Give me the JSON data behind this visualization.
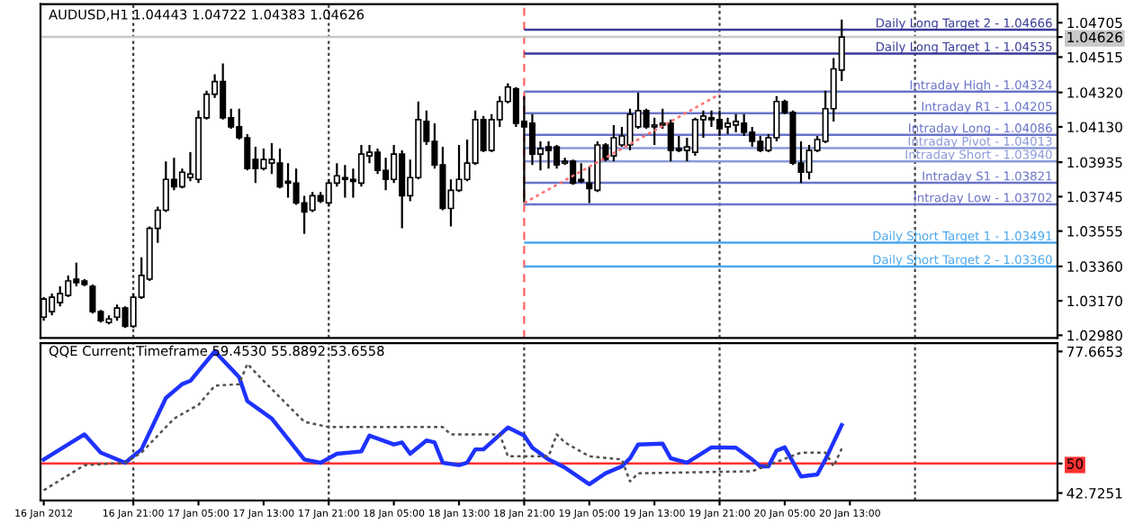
{
  "chart_data": [
    {
      "type": "candlestick",
      "title": "AUDUSD,H1 1.04443 1.04722 1.04383 1.04626",
      "x": [
        "2012-01-16T10:00",
        "2012-01-16T11:00",
        "2012-01-16T12:00",
        "2012-01-16T13:00",
        "2012-01-16T14:00",
        "2012-01-16T15:00",
        "2012-01-16T16:00",
        "2012-01-16T17:00",
        "2012-01-16T18:00",
        "2012-01-16T19:00",
        "2012-01-16T20:00",
        "2012-01-16T21:00",
        "2012-01-16T22:00",
        "2012-01-16T23:00",
        "2012-01-17T00:00",
        "2012-01-17T01:00",
        "2012-01-17T02:00",
        "2012-01-17T03:00",
        "2012-01-17T04:00",
        "2012-01-17T05:00",
        "2012-01-17T06:00",
        "2012-01-17T07:00",
        "2012-01-17T08:00",
        "2012-01-17T09:00",
        "2012-01-17T10:00",
        "2012-01-17T11:00",
        "2012-01-17T12:00",
        "2012-01-17T13:00",
        "2012-01-17T14:00",
        "2012-01-17T15:00",
        "2012-01-17T16:00",
        "2012-01-17T17:00",
        "2012-01-17T18:00",
        "2012-01-17T19:00",
        "2012-01-17T20:00",
        "2012-01-17T21:00",
        "2012-01-17T22:00",
        "2012-01-17T23:00",
        "2012-01-18T00:00",
        "2012-01-18T01:00",
        "2012-01-18T02:00",
        "2012-01-18T03:00",
        "2012-01-18T04:00",
        "2012-01-18T05:00",
        "2012-01-18T06:00",
        "2012-01-18T07:00",
        "2012-01-18T08:00",
        "2012-01-18T09:00",
        "2012-01-18T10:00",
        "2012-01-18T11:00",
        "2012-01-18T12:00",
        "2012-01-18T13:00",
        "2012-01-18T14:00",
        "2012-01-18T15:00",
        "2012-01-18T16:00",
        "2012-01-18T17:00",
        "2012-01-18T18:00",
        "2012-01-18T19:00",
        "2012-01-18T20:00",
        "2012-01-18T21:00",
        "2012-01-18T22:00",
        "2012-01-18T23:00",
        "2012-01-19T00:00",
        "2012-01-19T01:00",
        "2012-01-19T02:00",
        "2012-01-19T03:00",
        "2012-01-19T04:00",
        "2012-01-19T05:00",
        "2012-01-19T06:00",
        "2012-01-19T07:00",
        "2012-01-19T08:00",
        "2012-01-19T09:00",
        "2012-01-19T10:00",
        "2012-01-19T11:00",
        "2012-01-19T12:00",
        "2012-01-19T13:00",
        "2012-01-19T14:00",
        "2012-01-19T15:00",
        "2012-01-19T16:00",
        "2012-01-19T17:00",
        "2012-01-19T18:00",
        "2012-01-19T19:00",
        "2012-01-19T20:00",
        "2012-01-19T21:00",
        "2012-01-19T22:00",
        "2012-01-19T23:00",
        "2012-01-20T00:00",
        "2012-01-20T01:00",
        "2012-01-20T02:00",
        "2012-01-20T03:00",
        "2012-01-20T04:00",
        "2012-01-20T05:00",
        "2012-01-20T06:00",
        "2012-01-20T07:00",
        "2012-01-20T08:00",
        "2012-01-20T09:00",
        "2012-01-20T10:00",
        "2012-01-20T11:00",
        "2012-01-20T12:00"
      ],
      "ohlc": [
        [
          1.0308,
          1.0319,
          1.0306,
          1.0318
        ],
        [
          1.0311,
          1.0321,
          1.0309,
          1.0319
        ],
        [
          1.0316,
          1.0325,
          1.0314,
          1.0321
        ],
        [
          1.032,
          1.0331,
          1.0319,
          1.0328
        ],
        [
          1.0329,
          1.0338,
          1.0325,
          1.0327
        ],
        [
          1.0328,
          1.0329,
          1.0325,
          1.0326
        ],
        [
          1.0325,
          1.0326,
          1.031,
          1.0311
        ],
        [
          1.0311,
          1.0312,
          1.0305,
          1.0306
        ],
        [
          1.0305,
          1.0309,
          1.0304,
          1.0307
        ],
        [
          1.0308,
          1.0315,
          1.0306,
          1.0313
        ],
        [
          1.0313,
          1.0314,
          1.0302,
          1.0303
        ],
        [
          1.0303,
          1.0321,
          1.0302,
          1.0319
        ],
        [
          1.0319,
          1.0341,
          1.0318,
          1.0331
        ],
        [
          1.0329,
          1.0358,
          1.0328,
          1.0357
        ],
        [
          1.0357,
          1.0369,
          1.0349,
          1.0367
        ],
        [
          1.0367,
          1.0394,
          1.0366,
          1.0384
        ],
        [
          1.0384,
          1.0396,
          1.0378,
          1.038
        ],
        [
          1.038,
          1.039,
          1.0379,
          1.0388
        ],
        [
          1.0385,
          1.0399,
          1.0383,
          1.0387
        ],
        [
          1.0384,
          1.0422,
          1.0382,
          1.0418
        ],
        [
          1.0418,
          1.0433,
          1.0417,
          1.0431
        ],
        [
          1.0431,
          1.0442,
          1.0429,
          1.0438
        ],
        [
          1.0438,
          1.0448,
          1.0417,
          1.0418
        ],
        [
          1.0418,
          1.0423,
          1.0412,
          1.0413
        ],
        [
          1.0413,
          1.0423,
          1.0406,
          1.0407
        ],
        [
          1.0407,
          1.0409,
          1.0389,
          1.039
        ],
        [
          1.0395,
          1.0402,
          1.0382,
          1.039
        ],
        [
          1.039,
          1.0401,
          1.0389,
          1.0395
        ],
        [
          1.0393,
          1.0404,
          1.0387,
          1.0395
        ],
        [
          1.0393,
          1.0401,
          1.0379,
          1.038
        ],
        [
          1.0383,
          1.0393,
          1.0374,
          1.0382
        ],
        [
          1.0382,
          1.039,
          1.037,
          1.0371
        ],
        [
          1.0371,
          1.0375,
          1.0354,
          1.0366
        ],
        [
          1.0367,
          1.0377,
          1.0366,
          1.0375
        ],
        [
          1.0375,
          1.0377,
          1.0371,
          1.0372
        ],
        [
          1.0371,
          1.0384,
          1.0369,
          1.0382
        ],
        [
          1.0382,
          1.0393,
          1.038,
          1.0386
        ],
        [
          1.0385,
          1.0392,
          1.0374,
          1.0384
        ],
        [
          1.0384,
          1.039,
          1.0374,
          1.0383
        ],
        [
          1.0382,
          1.0403,
          1.038,
          1.0398
        ],
        [
          1.0397,
          1.0403,
          1.0393,
          1.0399
        ],
        [
          1.0399,
          1.0401,
          1.0387,
          1.0389
        ],
        [
          1.0389,
          1.0396,
          1.0378,
          1.0384
        ],
        [
          1.0384,
          1.0403,
          1.0382,
          1.0398
        ],
        [
          1.0398,
          1.04,
          1.0357,
          1.0375
        ],
        [
          1.0375,
          1.0395,
          1.0372,
          1.0385
        ],
        [
          1.0385,
          1.0427,
          1.0384,
          1.0417
        ],
        [
          1.0416,
          1.0422,
          1.0403,
          1.0405
        ],
        [
          1.0405,
          1.0415,
          1.039,
          1.0392
        ],
        [
          1.0392,
          1.0402,
          1.0367,
          1.0368
        ],
        [
          1.0368,
          1.0384,
          1.0358,
          1.0378
        ],
        [
          1.0378,
          1.0403,
          1.0377,
          1.0384
        ],
        [
          1.0384,
          1.0406,
          1.0383,
          1.0393
        ],
        [
          1.0393,
          1.0422,
          1.0392,
          1.0417
        ],
        [
          1.0417,
          1.0419,
          1.0399,
          1.04
        ],
        [
          1.04,
          1.042,
          1.0399,
          1.0417
        ],
        [
          1.0417,
          1.043,
          1.0413,
          1.0427
        ],
        [
          1.0427,
          1.0437,
          1.0426,
          1.0435
        ],
        [
          1.0434,
          1.0435,
          1.0413,
          1.0415
        ],
        [
          1.0416,
          1.043,
          1.0371,
          1.0413
        ],
        [
          1.0415,
          1.042,
          1.0392,
          1.0398
        ],
        [
          1.0398,
          1.0405,
          1.0389,
          1.0401
        ],
        [
          1.0402,
          1.0405,
          1.039,
          1.04
        ],
        [
          1.0402,
          1.0403,
          1.039,
          1.0392
        ],
        [
          1.0393,
          1.0396,
          1.0392,
          1.0394
        ],
        [
          1.0394,
          1.0395,
          1.0381,
          1.0382
        ],
        [
          1.0384,
          1.0393,
          1.0382,
          1.0383
        ],
        [
          1.0382,
          1.0391,
          1.0371,
          1.0379
        ],
        [
          1.0378,
          1.0405,
          1.0377,
          1.0403
        ],
        [
          1.0403,
          1.0404,
          1.0394,
          1.0395
        ],
        [
          1.0397,
          1.0414,
          1.0394,
          1.0407
        ],
        [
          1.0403,
          1.0413,
          1.0402,
          1.0408
        ],
        [
          1.0403,
          1.0423,
          1.04,
          1.042
        ],
        [
          1.0413,
          1.0432,
          1.0412,
          1.0422
        ],
        [
          1.0422,
          1.0423,
          1.0412,
          1.0413
        ],
        [
          1.0413,
          1.0418,
          1.0403,
          1.0414
        ],
        [
          1.0414,
          1.0423,
          1.0412,
          1.0415
        ],
        [
          1.0415,
          1.0417,
          1.0394,
          1.04
        ],
        [
          1.0401,
          1.0408,
          1.0399,
          1.04
        ],
        [
          1.04,
          1.0407,
          1.0394,
          1.0402
        ],
        [
          1.0399,
          1.0418,
          1.0397,
          1.0417
        ],
        [
          1.0417,
          1.0422,
          1.0407,
          1.0419
        ],
        [
          1.0418,
          1.0422,
          1.0413,
          1.0417
        ],
        [
          1.0417,
          1.0422,
          1.0408,
          1.0412
        ],
        [
          1.0413,
          1.0418,
          1.0409,
          1.0415
        ],
        [
          1.0414,
          1.042,
          1.041,
          1.0416
        ],
        [
          1.0415,
          1.042,
          1.0408,
          1.041
        ],
        [
          1.041,
          1.0413,
          1.0402,
          1.0405
        ],
        [
          1.0405,
          1.0408,
          1.0399,
          1.04
        ],
        [
          1.04,
          1.0409,
          1.0399,
          1.0407
        ],
        [
          1.0407,
          1.043,
          1.0405,
          1.0427
        ],
        [
          1.0427,
          1.0428,
          1.042,
          1.0421
        ],
        [
          1.0421,
          1.0422,
          1.0392,
          1.0393
        ],
        [
          1.0393,
          1.0405,
          1.0382,
          1.0388
        ],
        [
          1.0388,
          1.0403,
          1.0384,
          1.04
        ],
        [
          1.04,
          1.0408,
          1.0399,
          1.0406
        ],
        [
          1.0405,
          1.0433,
          1.0404,
          1.0423
        ],
        [
          1.0423,
          1.0451,
          1.0416,
          1.0445
        ],
        [
          1.04443,
          1.04722,
          1.04383,
          1.04626
        ]
      ],
      "series": [
        {
          "type": "line",
          "x": [
            "2012-01-18T21:00",
            "2012-01-19T21:00"
          ],
          "values": [
            1.0371,
            1.0431
          ],
          "color": "#ff7070",
          "line_style": "dotted"
        }
      ],
      "xlim": [
        "2012-01-16T09:36",
        "2012-01-21T14:30"
      ],
      "ylim": [
        1.02965,
        1.04807
      ],
      "yticks": [
        {
          "value": 1.04705,
          "label": "1.04705"
        },
        {
          "value": 1.04626,
          "label": "1.04626"
        },
        {
          "value": 1.04515,
          "label": "1.04515"
        },
        {
          "value": 1.0432,
          "label": "1.04320"
        },
        {
          "value": 1.0413,
          "label": "1.04130"
        },
        {
          "value": 1.03935,
          "label": "1.03935"
        },
        {
          "value": 1.03745,
          "label": "1.03745"
        },
        {
          "value": 1.03555,
          "label": "1.03555"
        },
        {
          "value": 1.0336,
          "label": "1.03360"
        },
        {
          "value": 1.0317,
          "label": "1.03170"
        },
        {
          "value": 1.0298,
          "label": "1.02980"
        }
      ],
      "tick_labels": "y",
      "ref_lines": [
        {
          "axis": "x",
          "value": "2012-01-16T21:00",
          "color": "#404040",
          "line_style": "dotted"
        },
        {
          "axis": "x",
          "value": "2012-01-17T21:00",
          "color": "#404040",
          "line_style": "dotted"
        },
        {
          "axis": "x",
          "value": "2012-01-19T21:00",
          "color": "#404040",
          "line_style": "dotted"
        },
        {
          "axis": "x",
          "value": "2012-01-20T21:00",
          "color": "#404040",
          "line_style": "dotted"
        },
        {
          "axis": "x",
          "value": "2012-01-18T21:00",
          "color": "#ff6060",
          "line_style": "dashed"
        },
        {
          "axis": "y",
          "value": 1.04626,
          "color": "#c8c8c8"
        },
        {
          "axis": "y",
          "value": 1.04666,
          "label": "Daily Long Target 2 - 1.04666",
          "color": "#3a3a9a"
        },
        {
          "axis": "y",
          "value": 1.04535,
          "label": "Daily Long Target 1 - 1.04535",
          "color": "#3a3a9a"
        },
        {
          "axis": "y",
          "value": 1.04324,
          "label": "Intraday High - 1.04324",
          "color": "#6a74c8"
        },
        {
          "axis": "y",
          "value": 1.04205,
          "label": "Intraday R1 - 1.04205",
          "color": "#6a74c8"
        },
        {
          "axis": "y",
          "value": 1.04086,
          "label": "Intraday Long - 1.04086",
          "color": "#6a74c8"
        },
        {
          "axis": "y",
          "value": 1.04013,
          "label": "Intraday Pivot - 1.04013",
          "color": "#8c9ad8"
        },
        {
          "axis": "y",
          "value": 1.0394,
          "label": "Intraday Short - 1.03940",
          "color": "#8c9ad8"
        },
        {
          "axis": "y",
          "value": 1.03821,
          "label": "Intraday S1 - 1.03821",
          "color": "#6a74c8"
        },
        {
          "axis": "y",
          "value": 1.03702,
          "label": "Intraday Low - 1.03702",
          "color": "#6a74c8"
        },
        {
          "axis": "y",
          "value": 1.03491,
          "label": "Daily Short Target 1 - 1.03491",
          "color": "#4aa8ee"
        },
        {
          "axis": "y",
          "value": 1.0336,
          "label": "Daily Short Target 2 - 1.03360",
          "color": "#4aa8ee"
        }
      ]
    },
    {
      "type": "line",
      "title": "QQE Current Timeframe 59.4530 55.8892 53.6558",
      "series": [
        {
          "color": "#1e32ff",
          "line_style": "solid",
          "x": [
            "2012-01-16T10:00",
            "2012-01-16T15:00",
            "2012-01-16T17:00",
            "2012-01-16T20:00",
            "2012-01-16T22:00",
            "2012-01-17T01:00",
            "2012-01-17T03:00",
            "2012-01-17T04:00",
            "2012-01-17T07:00",
            "2012-01-17T10:00",
            "2012-01-17T11:00",
            "2012-01-17T14:00",
            "2012-01-17T18:00",
            "2012-01-17T20:00",
            "2012-01-17T22:00",
            "2012-01-18T01:00",
            "2012-01-18T02:00",
            "2012-01-18T05:00",
            "2012-01-18T06:00",
            "2012-01-18T07:00",
            "2012-01-18T09:00",
            "2012-01-18T10:00",
            "2012-01-18T11:00",
            "2012-01-18T13:00",
            "2012-01-18T14:00",
            "2012-01-18T15:00",
            "2012-01-18T16:00",
            "2012-01-18T19:00",
            "2012-01-18T21:00",
            "2012-01-18T22:00",
            "2012-01-19T00:00",
            "2012-01-19T02:00",
            "2012-01-19T05:00",
            "2012-01-19T07:00",
            "2012-01-19T09:00",
            "2012-01-19T10:00",
            "2012-01-19T11:00",
            "2012-01-19T14:00",
            "2012-01-19T15:00",
            "2012-01-19T17:00",
            "2012-01-19T20:00",
            "2012-01-19T23:00",
            "2012-01-20T01:00",
            "2012-01-20T02:00",
            "2012-01-20T03:00",
            "2012-01-20T04:00",
            "2012-01-20T05:00",
            "2012-01-20T07:00",
            "2012-01-20T09:00",
            "2012-01-20T10:00",
            "2012-01-20T12:00"
          ],
          "values": [
            51.0,
            57.2,
            52.7,
            50.2,
            53.5,
            66.2,
            69.6,
            70.4,
            77.7,
            71.3,
            65.4,
            61.1,
            51.0,
            50.2,
            52.4,
            53.0,
            56.9,
            54.7,
            55.2,
            52.4,
            55.7,
            55.2,
            50.2,
            49.6,
            50.2,
            53.5,
            53.5,
            58.9,
            56.9,
            53.9,
            51.0,
            49.0,
            44.9,
            47.6,
            49.3,
            51.3,
            54.7,
            54.9,
            51.3,
            50.2,
            54.0,
            53.9,
            51.0,
            49.3,
            49.3,
            53.2,
            54.0,
            46.8,
            47.3,
            51.0,
            59.5
          ]
        },
        {
          "color": "#505050",
          "line_style": "dotted",
          "x": [
            "2012-01-16T10:00",
            "2012-01-16T15:00",
            "2012-01-16T20:00",
            "2012-01-16T22:00",
            "2012-01-17T02:00",
            "2012-01-17T05:00",
            "2012-01-17T07:00",
            "2012-01-17T10:00",
            "2012-01-17T11:00",
            "2012-01-17T13:00",
            "2012-01-17T18:00",
            "2012-01-17T21:00",
            "2012-01-18T11:00",
            "2012-01-18T12:00",
            "2012-01-18T18:00",
            "2012-01-18T19:00",
            "2012-01-19T00:00",
            "2012-01-19T01:00",
            "2012-01-19T02:00",
            "2012-01-19T05:00",
            "2012-01-19T09:00",
            "2012-01-19T10:00",
            "2012-01-19T11:00",
            "2012-01-20T01:00",
            "2012-01-20T07:00",
            "2012-01-20T10:00",
            "2012-01-20T11:00",
            "2012-01-20T12:00"
          ],
          "values": [
            43.4,
            49.6,
            50.2,
            52.7,
            61.1,
            64.5,
            69.2,
            69.6,
            74.6,
            70.4,
            60.3,
            59.0,
            59.0,
            57.2,
            57.2,
            51.8,
            51.8,
            57.2,
            55.2,
            51.8,
            51.0,
            45.6,
            47.6,
            48.1,
            52.7,
            52.7,
            49.3,
            53.7
          ]
        }
      ],
      "xlim": [
        "2012-01-16T09:36",
        "2012-01-21T14:30"
      ],
      "ylim": [
        40.9,
        79.7
      ],
      "xticks": [
        {
          "value": "2012-01-16T10:00",
          "label": "16 Jan 2012"
        },
        {
          "value": "2012-01-16T21:00",
          "label": "16 Jan 21:00"
        },
        {
          "value": "2012-01-17T05:00",
          "label": "17 Jan 05:00"
        },
        {
          "value": "2012-01-17T13:00",
          "label": "17 Jan 13:00"
        },
        {
          "value": "2012-01-17T21:00",
          "label": "17 Jan 21:00"
        },
        {
          "value": "2012-01-18T05:00",
          "label": "18 Jan 05:00"
        },
        {
          "value": "2012-01-18T13:00",
          "label": "18 Jan 13:00"
        },
        {
          "value": "2012-01-18T21:00",
          "label": "18 Jan 21:00"
        },
        {
          "value": "2012-01-19T05:00",
          "label": "19 Jan 05:00"
        },
        {
          "value": "2012-01-19T13:00",
          "label": "19 Jan 13:00"
        },
        {
          "value": "2012-01-19T21:00",
          "label": "19 Jan 21:00"
        },
        {
          "value": "2012-01-20T05:00",
          "label": "20 Jan 05:00"
        },
        {
          "value": "2012-01-20T13:00",
          "label": "20 Jan 13:00"
        }
      ],
      "yticks": [
        {
          "value": 77.6653,
          "label": "77.6653"
        },
        50,
        {
          "value": 42.7251,
          "label": "42.7251"
        }
      ],
      "ref_lines": [
        {
          "axis": "x",
          "value": "2012-01-16T21:00",
          "color": "#404040",
          "line_style": "dotted"
        },
        {
          "axis": "x",
          "value": "2012-01-17T21:00",
          "color": "#404040",
          "line_style": "dotted"
        },
        {
          "axis": "x",
          "value": "2012-01-18T21:00",
          "color": "#404040",
          "line_style": "dotted"
        },
        {
          "axis": "x",
          "value": "2012-01-19T21:00",
          "color": "#404040",
          "line_style": "dotted"
        },
        {
          "axis": "x",
          "value": "2012-01-20T21:00",
          "color": "#404040",
          "line_style": "dotted"
        },
        {
          "axis": "y",
          "value": 50,
          "color": "#ff3030"
        }
      ]
    }
  ]
}
